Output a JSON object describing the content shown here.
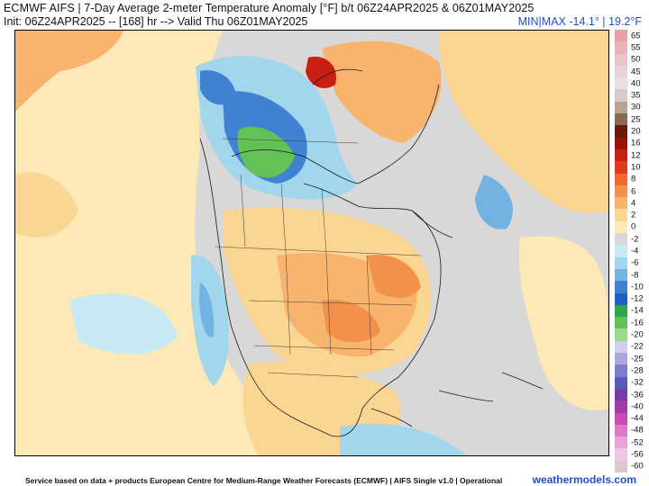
{
  "header": {
    "line1": "ECMWF AIFS | 7-Day Average 2-meter Temperature Anomaly [°F] b/t 06Z24APR2025 & 06Z01MAY2025",
    "line2": "Init: 06Z24APR2025 -- [168] hr --> Valid Thu 06Z01MAY2025",
    "minmax": "MIN|MAX -14.1° | 19.2°F"
  },
  "colorbar": {
    "labels": [
      "65",
      "55",
      "50",
      "45",
      "40",
      "35",
      "30",
      "25",
      "20",
      "16",
      "12",
      "10",
      "8",
      "6",
      "4",
      "2",
      "0",
      "-2",
      "-4",
      "-6",
      "-8",
      "-10",
      "-12",
      "-14",
      "-16",
      "-20",
      "-22",
      "-25",
      "-28",
      "-32",
      "-36",
      "-40",
      "-44",
      "-48",
      "-52",
      "-56",
      "-60"
    ],
    "colors": [
      "#e8a0a8",
      "#e7b2b8",
      "#eac3c8",
      "#ead3d6",
      "#e8e0e0",
      "#d8cbc3",
      "#b9a394",
      "#8a6a55",
      "#6b1a0e",
      "#9a1208",
      "#c71f12",
      "#e23b1b",
      "#ef6a2b",
      "#f3914a",
      "#f8b46c",
      "#fbd592",
      "#fde8b8",
      "#d8d8d8",
      "#c7e9f3",
      "#a2d6ec",
      "#72b3e2",
      "#3f82d1",
      "#1f5fbf",
      "#31a64a",
      "#63c256",
      "#99d98a",
      "#cfcfeb",
      "#a8a8dc",
      "#7d7dcb",
      "#5a5aba",
      "#7a3aa8",
      "#a43aa8",
      "#c84cb4",
      "#df78c8",
      "#eaa3d8",
      "#efc6e4",
      "#d9c8d2"
    ]
  },
  "footer": {
    "text": "Service based on data + products European Centre for Medium-Range Weather Forecasts (ECMWF) | AIFS Single v1.0 | Operational",
    "brand": "weathermodels.com"
  }
}
